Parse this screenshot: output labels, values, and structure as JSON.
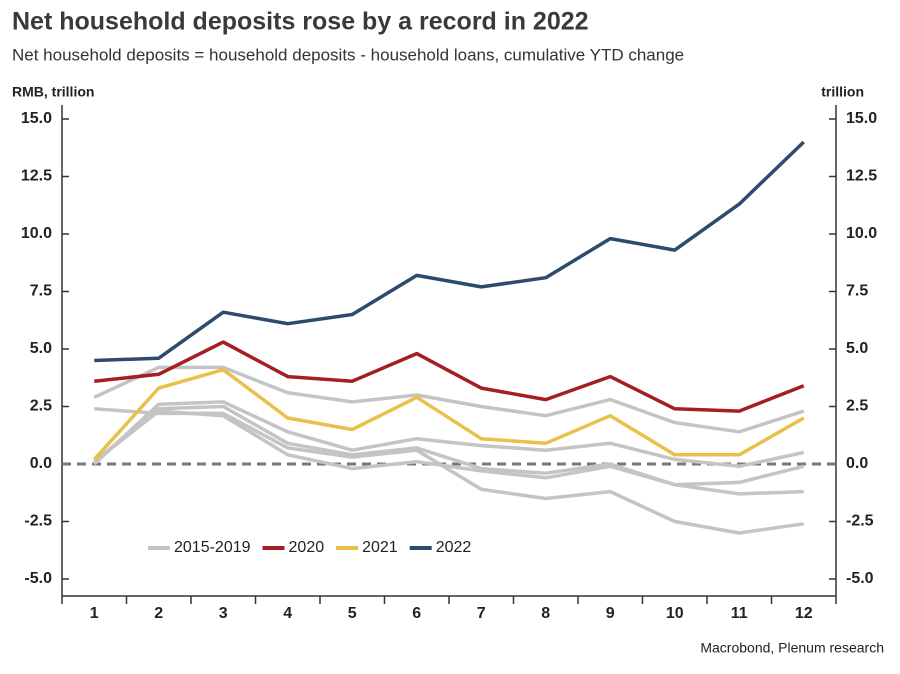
{
  "chart_data": {
    "type": "line",
    "title": "Net household deposits rose by a record in 2022",
    "subtitle": "Net household deposits = household deposits - household loans, cumulative YTD change",
    "y_label": "RMB, trillion",
    "y2_label": "trillion",
    "source": "Macrobond, Plenum research",
    "categories": [
      "1",
      "2",
      "3",
      "4",
      "5",
      "6",
      "7",
      "8",
      "9",
      "10",
      "11",
      "12"
    ],
    "ylim": [
      -5,
      15
    ],
    "yticks": [
      {
        "value": 15,
        "label": "15.0"
      },
      {
        "value": 12.5,
        "label": "12.5"
      },
      {
        "value": 10,
        "label": "10.0"
      },
      {
        "value": 7.5,
        "label": "7.5"
      },
      {
        "value": 5,
        "label": "5.0"
      },
      {
        "value": 2.5,
        "label": "2.5"
      },
      {
        "value": 0,
        "label": "0.0"
      },
      {
        "value": -2.5,
        "label": "-2.5"
      },
      {
        "value": -5,
        "label": "-5.0"
      }
    ],
    "y2lim": [
      -5,
      15
    ],
    "y2ticks": [
      {
        "value": 15,
        "label": "15.0"
      },
      {
        "value": 12.5,
        "label": "12.5"
      },
      {
        "value": 10,
        "label": "10.0"
      },
      {
        "value": 7.5,
        "label": "7.5"
      },
      {
        "value": 5,
        "label": "5.0"
      },
      {
        "value": 2.5,
        "label": "2.5"
      },
      {
        "value": 0,
        "label": "0.0"
      },
      {
        "value": -2.5,
        "label": "-2.5"
      },
      {
        "value": -5,
        "label": "-5.0"
      }
    ],
    "zero_line": true,
    "series": [
      {
        "name": "2015-2019",
        "color": "#c4c4c4",
        "values": [
          [
            2.9,
            4.2,
            4.2,
            3.1,
            2.7,
            3.0,
            2.5,
            2.1,
            2.8,
            1.8,
            1.4,
            2.3
          ],
          [
            2.4,
            2.2,
            2.2,
            0.7,
            0.3,
            0.6,
            -1.1,
            -1.5,
            -1.2,
            -2.5,
            -3.0,
            -2.6
          ],
          [
            0.0,
            2.6,
            2.7,
            1.4,
            0.6,
            1.1,
            0.8,
            0.6,
            0.9,
            0.2,
            -0.1,
            0.5
          ],
          [
            0.1,
            2.4,
            2.5,
            0.9,
            0.4,
            0.7,
            -0.2,
            -0.4,
            0.0,
            -0.9,
            -0.8,
            -0.1
          ],
          [
            0.1,
            2.3,
            2.1,
            0.4,
            -0.2,
            0.1,
            -0.3,
            -0.6,
            -0.1,
            -0.9,
            -1.3,
            -1.2
          ]
        ]
      },
      {
        "name": "2020",
        "color": "#a31f24",
        "values": [
          3.6,
          3.9,
          5.3,
          3.8,
          3.6,
          4.8,
          3.3,
          2.8,
          3.8,
          2.4,
          2.3,
          3.4
        ]
      },
      {
        "name": "2021",
        "color": "#e8c04a",
        "values": [
          0.2,
          3.3,
          4.1,
          2.0,
          1.5,
          2.9,
          1.1,
          0.9,
          2.1,
          0.4,
          0.4,
          2.0
        ]
      },
      {
        "name": "2022",
        "color": "#2e4a6e",
        "values": [
          4.5,
          4.6,
          6.6,
          6.1,
          6.5,
          8.2,
          7.7,
          8.1,
          9.8,
          9.3,
          11.3,
          14.0
        ]
      }
    ]
  }
}
